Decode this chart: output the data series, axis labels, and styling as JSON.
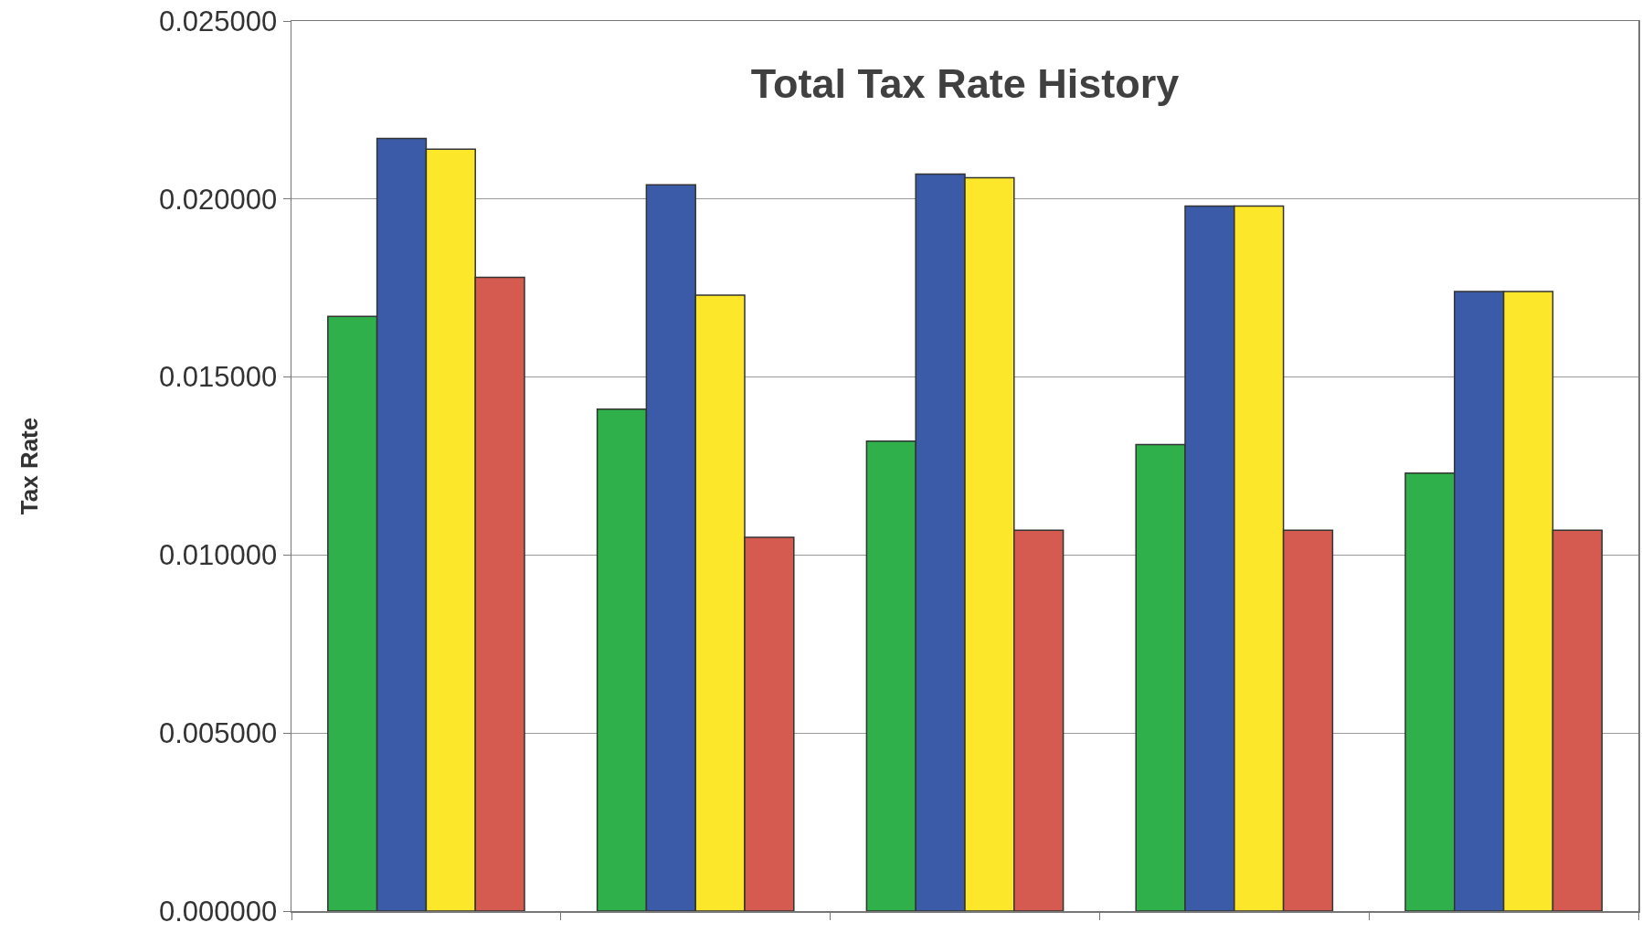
{
  "chart_data": {
    "type": "bar",
    "title": "Total Tax Rate History",
    "ylabel": "Tax Rate",
    "categories": [
      null,
      null,
      null,
      null,
      null
    ],
    "series": [
      {
        "color": "#30b04a",
        "values": [
          0.0167,
          0.0141,
          0.0132,
          0.0131,
          0.0123
        ]
      },
      {
        "color": "#3b5ba8",
        "values": [
          0.0217,
          0.0204,
          0.0207,
          0.0198,
          0.0174
        ]
      },
      {
        "color": "#fde72a",
        "values": [
          0.0214,
          0.0173,
          0.0206,
          0.0198,
          0.0174
        ]
      },
      {
        "color": "#d55a4f",
        "values": [
          0.0178,
          0.0105,
          0.0107,
          0.0107,
          0.0107
        ]
      }
    ],
    "ylim": [
      0,
      0.025
    ],
    "yticks": [
      {
        "value": 0,
        "label": "0.000000"
      },
      {
        "value": 0.005,
        "label": "0.005000"
      },
      {
        "value": 0.01,
        "label": "0.010000"
      },
      {
        "value": 0.015,
        "label": "0.015000"
      },
      {
        "value": 0.02,
        "label": "0.020000"
      },
      {
        "value": 0.025,
        "label": "0.025000"
      }
    ],
    "grid": "y",
    "tick_labels": "y"
  }
}
